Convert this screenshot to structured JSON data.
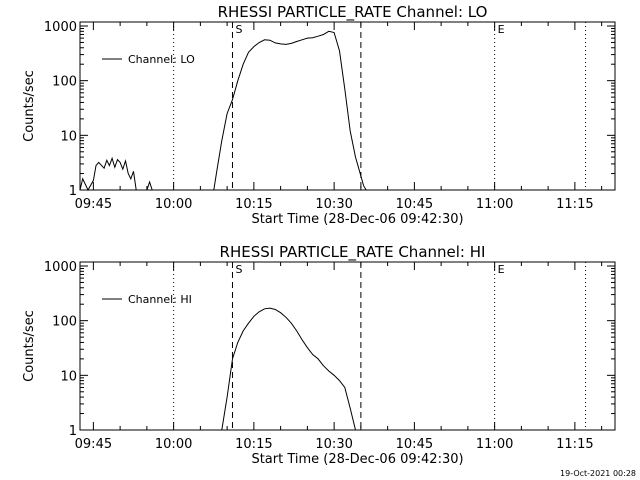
{
  "chart_data": [
    {
      "type": "line",
      "title": "RHESSI PARTICLE_RATE Channel: LO",
      "xlabel": "Start Time (28-Dec-06 09:42:30)",
      "ylabel": "Counts/sec",
      "yscale": "log",
      "ylim": [
        1,
        1000
      ],
      "xlim": [
        "09:42:30",
        "11:22:30"
      ],
      "xticks": [
        "09:45",
        "10:00",
        "10:15",
        "10:30",
        "10:45",
        "11:00",
        "11:15"
      ],
      "yticks": [
        "1",
        "10",
        "100",
        "1000"
      ],
      "legend": "top-left",
      "series": [
        {
          "name": "Channel: LO",
          "x": [
            "09:42:30",
            "09:43:00",
            "09:44:00",
            "09:45:00",
            "09:45:30",
            "09:46:00",
            "09:47:00",
            "09:47:30",
            "09:48:00",
            "09:48:30",
            "09:49:00",
            "09:49:30",
            "09:50:00",
            "09:50:30",
            "09:51:00",
            "09:51:30",
            "09:52:00",
            "09:52:30",
            "09:53:00",
            "09:54:00",
            "09:55:00",
            "09:55:30",
            "09:56:00",
            "10:07:30",
            "10:08:00",
            "10:09:00",
            "10:10:00",
            "10:11:00",
            "10:12:00",
            "10:13:00",
            "10:14:00",
            "10:15:00",
            "10:16:00",
            "10:17:00",
            "10:18:00",
            "10:19:00",
            "10:20:00",
            "10:21:00",
            "10:22:00",
            "10:23:00",
            "10:24:00",
            "10:25:00",
            "10:26:00",
            "10:27:00",
            "10:28:00",
            "10:29:00",
            "10:30:00",
            "10:31:00",
            "10:32:00",
            "10:33:00",
            "10:34:00",
            "10:35:00",
            "10:35:30",
            "10:36:00"
          ],
          "values": [
            1,
            1.6,
            1,
            1.5,
            2.8,
            3.2,
            2.5,
            3.5,
            2.8,
            3.8,
            2.6,
            3.6,
            3.2,
            2.4,
            3.4,
            2.0,
            1.6,
            2.2,
            1,
            1,
            1,
            1.4,
            1,
            1,
            2,
            8,
            25,
            45,
            100,
            200,
            330,
            420,
            500,
            560,
            550,
            490,
            470,
            460,
            480,
            520,
            560,
            600,
            610,
            650,
            700,
            800,
            760,
            350,
            70,
            12,
            4,
            1.8,
            1.2,
            1
          ]
        }
      ],
      "annotations": [
        {
          "label": "S",
          "time": "10:11:00",
          "style": "dashed"
        },
        {
          "label": "",
          "time": "10:35:00",
          "style": "dashed"
        },
        {
          "label": "E",
          "time": "11:00:00",
          "style": "dotted"
        },
        {
          "label": "",
          "time": "10:00:00",
          "style": "dotted"
        },
        {
          "label": "",
          "time": "11:17:00",
          "style": "dotted"
        }
      ]
    },
    {
      "type": "line",
      "title": "RHESSI PARTICLE_RATE Channel: HI",
      "xlabel": "Start Time (28-Dec-06 09:42:30)",
      "ylabel": "Counts/sec",
      "yscale": "log",
      "ylim": [
        1,
        1000
      ],
      "xlim": [
        "09:42:30",
        "11:22:30"
      ],
      "xticks": [
        "09:45",
        "10:00",
        "10:15",
        "10:30",
        "10:45",
        "11:00",
        "11:15"
      ],
      "yticks": [
        "1",
        "10",
        "100",
        "1000"
      ],
      "legend": "top-left",
      "series": [
        {
          "name": "Channel: HI",
          "x": [
            "10:09:00",
            "10:10:00",
            "10:11:00",
            "10:12:00",
            "10:13:00",
            "10:14:00",
            "10:15:00",
            "10:16:00",
            "10:17:00",
            "10:18:00",
            "10:19:00",
            "10:20:00",
            "10:21:00",
            "10:22:00",
            "10:23:00",
            "10:24:00",
            "10:25:00",
            "10:26:00",
            "10:27:00",
            "10:28:00",
            "10:29:00",
            "10:30:00",
            "10:31:00",
            "10:32:00",
            "10:33:00",
            "10:34:00"
          ],
          "values": [
            1,
            4,
            20,
            40,
            65,
            90,
            120,
            145,
            165,
            170,
            160,
            140,
            115,
            90,
            65,
            45,
            32,
            24,
            20,
            15,
            12,
            10,
            8,
            6,
            2.5,
            1
          ]
        }
      ],
      "annotations": [
        {
          "label": "S",
          "time": "10:11:00",
          "style": "dashed"
        },
        {
          "label": "",
          "time": "10:35:00",
          "style": "dashed"
        },
        {
          "label": "E",
          "time": "11:00:00",
          "style": "dotted"
        },
        {
          "label": "",
          "time": "10:00:00",
          "style": "dotted"
        },
        {
          "label": "",
          "time": "11:17:00",
          "style": "dotted"
        }
      ]
    }
  ],
  "footer": {
    "timestamp": "19-Oct-2021 00:28"
  }
}
